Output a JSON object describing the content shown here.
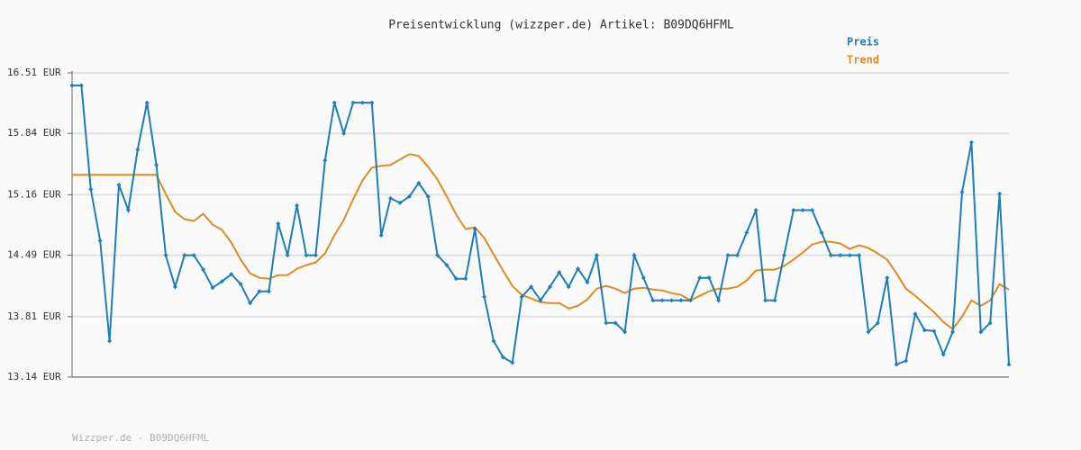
{
  "chart_data": {
    "type": "line",
    "title": "Preisentwicklung (wizzper.de) Artikel: B09DQ6HFML",
    "footer": "Wizzper.de - B09DQ6HFML",
    "categories": [
      null,
      null,
      null,
      null,
      null,
      null,
      null,
      null,
      null,
      null,
      null,
      null,
      null,
      null,
      null,
      null,
      null,
      null,
      null,
      null,
      null,
      null,
      null,
      null,
      null,
      null,
      null,
      null,
      null,
      null,
      null,
      null,
      null,
      null,
      null,
      null,
      null,
      null,
      null,
      null,
      null,
      null,
      null,
      null,
      null,
      null,
      null,
      null,
      null,
      null,
      null,
      null,
      null,
      null,
      null,
      null,
      null,
      null,
      null,
      null,
      null,
      null,
      null,
      null,
      null,
      null,
      null,
      null,
      null,
      null,
      null,
      null,
      null,
      null,
      null,
      null,
      null,
      null,
      null,
      null,
      null,
      null,
      null,
      null,
      null,
      null,
      null,
      null,
      null,
      null,
      null,
      null,
      null,
      null,
      null,
      null,
      null,
      null,
      null,
      null,
      null
    ],
    "series": [
      {
        "name": "Preis",
        "color": "#1f7db8",
        "markers": true,
        "values": [
          16.37,
          16.37,
          15.22,
          14.65,
          13.54,
          15.27,
          14.99,
          15.66,
          16.18,
          15.49,
          14.49,
          14.14,
          14.49,
          14.49,
          14.33,
          14.13,
          14.2,
          14.28,
          14.17,
          13.96,
          14.09,
          14.09,
          14.84,
          14.49,
          15.04,
          14.49,
          14.49,
          15.54,
          16.18,
          15.84,
          16.18,
          16.18,
          16.18,
          14.71,
          15.12,
          15.07,
          15.14,
          15.29,
          15.14,
          14.49,
          14.38,
          14.23,
          14.23,
          14.78,
          14.03,
          13.54,
          13.36,
          13.3,
          14.03,
          14.14,
          13.99,
          14.14,
          14.3,
          14.14,
          14.34,
          14.19,
          14.49,
          13.74,
          13.74,
          13.64,
          14.49,
          14.24,
          13.99,
          13.99,
          13.99,
          13.99,
          13.99,
          14.24,
          14.24,
          13.99,
          14.49,
          14.49,
          14.74,
          14.99,
          13.99,
          13.99,
          14.49,
          14.99,
          14.99,
          14.99,
          14.74,
          14.49,
          14.49,
          14.49,
          14.49,
          13.64,
          13.74,
          14.24,
          13.28,
          13.32,
          13.84,
          13.66,
          13.65,
          13.39,
          13.64,
          15.19,
          15.74,
          13.64,
          13.74,
          15.17,
          13.28
        ]
      },
      {
        "name": "Trend",
        "color": "#e08a22",
        "markers": false,
        "values": [
          15.38,
          15.38,
          15.38,
          15.38,
          15.38,
          15.38,
          15.38,
          15.38,
          15.38,
          15.38,
          15.17,
          14.97,
          14.89,
          14.87,
          14.95,
          14.83,
          14.77,
          14.63,
          14.44,
          14.29,
          14.24,
          14.23,
          14.27,
          14.27,
          14.34,
          14.38,
          14.41,
          14.51,
          14.71,
          14.88,
          15.11,
          15.32,
          15.46,
          15.48,
          15.49,
          15.55,
          15.61,
          15.59,
          15.47,
          15.33,
          15.14,
          14.94,
          14.78,
          14.8,
          14.68,
          14.5,
          14.32,
          14.15,
          14.05,
          14.01,
          13.97,
          13.96,
          13.96,
          13.9,
          13.93,
          14.0,
          14.12,
          14.15,
          14.12,
          14.07,
          14.12,
          14.13,
          14.11,
          14.1,
          14.07,
          14.05,
          13.99,
          14.04,
          14.09,
          14.12,
          14.12,
          14.14,
          14.21,
          14.32,
          14.33,
          14.33,
          14.37,
          14.44,
          14.52,
          14.61,
          14.64,
          14.64,
          14.62,
          14.56,
          14.6,
          14.57,
          14.51,
          14.44,
          14.29,
          14.12,
          14.04,
          13.95,
          13.86,
          13.75,
          13.67,
          13.81,
          13.99,
          13.93,
          13.99,
          14.17,
          14.11
        ]
      }
    ],
    "ylim": [
      13.14,
      16.51
    ],
    "yticks": [
      {
        "value": 13.14,
        "label": "13.14 EUR"
      },
      {
        "value": 13.81,
        "label": "13.81 EUR"
      },
      {
        "value": 14.49,
        "label": "14.49 EUR"
      },
      {
        "value": 15.16,
        "label": "15.16 EUR"
      },
      {
        "value": 15.84,
        "label": "15.84 EUR"
      },
      {
        "value": 16.51,
        "label": "16.51 EUR"
      }
    ],
    "grid": true
  }
}
